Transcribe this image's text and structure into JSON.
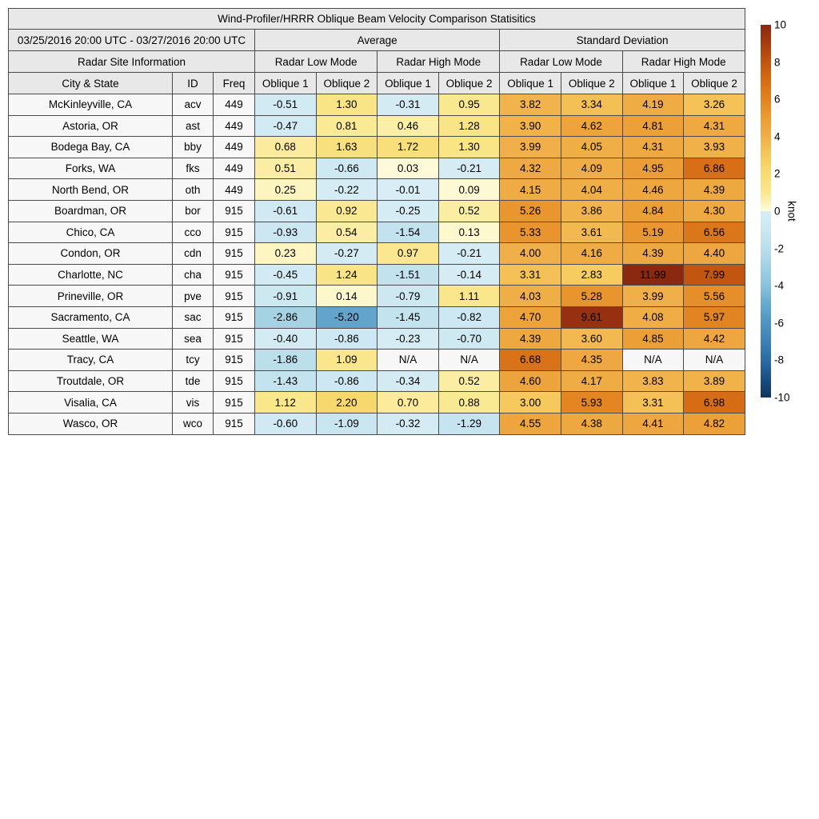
{
  "title": "Wind-Profiler/HRRR Oblique Beam Velocity Comparison Statisitics",
  "header": {
    "date_range": "03/25/2016 20:00 UTC - 03/27/2016 20:00 UTC",
    "group_average": "Average",
    "group_std": "Standard Deviation",
    "site_info": "Radar Site Information",
    "modes": [
      "Radar Low Mode",
      "Radar High Mode",
      "Radar Low Mode",
      "Radar High Mode"
    ],
    "col_city": "City & State",
    "col_id": "ID",
    "col_freq": "Freq",
    "oblique": [
      "Oblique 1",
      "Oblique 2",
      "Oblique 1",
      "Oblique 2",
      "Oblique 1",
      "Oblique 2",
      "Oblique 1",
      "Oblique 2"
    ]
  },
  "na_text": "N/A",
  "colorbar": {
    "label": "knot",
    "min": -10,
    "max": 10,
    "ticks": [
      10,
      8,
      6,
      4,
      2,
      0,
      -2,
      -4,
      -6,
      -8,
      -10
    ]
  },
  "colormap": {
    "positive_stops": [
      [
        0,
        "#FEFBDC"
      ],
      [
        0.5,
        "#FBEEA4"
      ],
      [
        1,
        "#FAE78E"
      ],
      [
        2,
        "#F8DC74"
      ],
      [
        3,
        "#F5C95C"
      ],
      [
        4,
        "#F0AF48"
      ],
      [
        5,
        "#EC9C34"
      ],
      [
        6,
        "#E28320"
      ],
      [
        7,
        "#D66C14"
      ],
      [
        8,
        "#C2550F"
      ],
      [
        9,
        "#A63C10"
      ],
      [
        10,
        "#8B2810"
      ]
    ],
    "negative_stops": [
      [
        -10,
        "#10355E"
      ],
      [
        -9,
        "#1B4E83"
      ],
      [
        -8,
        "#2B6BA6"
      ],
      [
        -7,
        "#3D81B5"
      ],
      [
        -6,
        "#4E95C3"
      ],
      [
        -5,
        "#67A8CE"
      ],
      [
        -4,
        "#8BC2DC"
      ],
      [
        -3,
        "#A2D1E3"
      ],
      [
        -2,
        "#B9DEEB"
      ],
      [
        -1,
        "#CBE7F1"
      ],
      [
        -0.001,
        "#D8EDF5"
      ]
    ],
    "header_bg": "#E8E8E8",
    "site_bg": "#F7F7F7",
    "border": "#4A4A4A"
  },
  "chart_data": {
    "type": "heatmap",
    "title": "Wind-Profiler/HRRR Oblique Beam Velocity Comparison Statisitics",
    "date_range": "03/25/2016 20:00 UTC - 03/27/2016 20:00 UTC",
    "colorbar_label": "knot",
    "value_range": [
      -10,
      10
    ],
    "legend_position": "right",
    "column_groups": [
      "Average - Radar Low Mode",
      "Average - Radar High Mode",
      "Standard Deviation - Radar Low Mode",
      "Standard Deviation - Radar High Mode"
    ],
    "value_columns": [
      "Avg Low Oblique 1",
      "Avg Low Oblique 2",
      "Avg High Oblique 1",
      "Avg High Oblique 2",
      "Std Low Oblique 1",
      "Std Low Oblique 2",
      "Std High Oblique 1",
      "Std High Oblique 2"
    ],
    "rows": [
      {
        "city": "McKinleyville, CA",
        "id": "acv",
        "freq": "449",
        "values": [
          -0.51,
          1.3,
          -0.31,
          0.95,
          3.82,
          3.34,
          4.19,
          3.26
        ]
      },
      {
        "city": "Astoria, OR",
        "id": "ast",
        "freq": "449",
        "values": [
          -0.47,
          0.81,
          0.46,
          1.28,
          3.9,
          4.62,
          4.81,
          4.31
        ]
      },
      {
        "city": "Bodega Bay, CA",
        "id": "bby",
        "freq": "449",
        "values": [
          0.68,
          1.63,
          1.72,
          1.3,
          3.99,
          4.05,
          4.31,
          3.93
        ]
      },
      {
        "city": "Forks, WA",
        "id": "fks",
        "freq": "449",
        "values": [
          0.51,
          -0.66,
          0.03,
          -0.21,
          4.32,
          4.09,
          4.95,
          6.86
        ]
      },
      {
        "city": "North Bend, OR",
        "id": "oth",
        "freq": "449",
        "values": [
          0.25,
          -0.22,
          -0.01,
          0.09,
          4.15,
          4.04,
          4.46,
          4.39
        ]
      },
      {
        "city": "Boardman, OR",
        "id": "bor",
        "freq": "915",
        "values": [
          -0.61,
          0.92,
          -0.25,
          0.52,
          5.26,
          3.86,
          4.84,
          4.3
        ]
      },
      {
        "city": "Chico, CA",
        "id": "cco",
        "freq": "915",
        "values": [
          -0.93,
          0.54,
          -1.54,
          0.13,
          5.33,
          3.61,
          5.19,
          6.56
        ]
      },
      {
        "city": "Condon, OR",
        "id": "cdn",
        "freq": "915",
        "values": [
          0.23,
          -0.27,
          0.97,
          -0.21,
          4.0,
          4.16,
          4.39,
          4.4
        ]
      },
      {
        "city": "Charlotte, NC",
        "id": "cha",
        "freq": "915",
        "values": [
          -0.45,
          1.24,
          -1.51,
          -0.14,
          3.31,
          2.83,
          11.99,
          7.99
        ]
      },
      {
        "city": "Prineville, OR",
        "id": "pve",
        "freq": "915",
        "values": [
          -0.91,
          0.14,
          -0.79,
          1.11,
          4.03,
          5.28,
          3.99,
          5.56
        ]
      },
      {
        "city": "Sacramento, CA",
        "id": "sac",
        "freq": "915",
        "values": [
          -2.86,
          -5.2,
          -1.45,
          -0.82,
          4.7,
          9.61,
          4.08,
          5.97
        ]
      },
      {
        "city": "Seattle, WA",
        "id": "sea",
        "freq": "915",
        "values": [
          -0.4,
          -0.86,
          -0.23,
          -0.7,
          4.39,
          3.6,
          4.85,
          4.42
        ]
      },
      {
        "city": "Tracy, CA",
        "id": "tcy",
        "freq": "915",
        "values": [
          -1.86,
          1.09,
          "N/A",
          "N/A",
          6.68,
          4.35,
          "N/A",
          "N/A"
        ]
      },
      {
        "city": "Troutdale, OR",
        "id": "tde",
        "freq": "915",
        "values": [
          -1.43,
          -0.86,
          -0.34,
          0.52,
          4.6,
          4.17,
          3.83,
          3.89
        ]
      },
      {
        "city": "Visalia, CA",
        "id": "vis",
        "freq": "915",
        "values": [
          1.12,
          2.2,
          0.7,
          0.88,
          3.0,
          5.93,
          3.31,
          6.98
        ]
      },
      {
        "city": "Wasco, OR",
        "id": "wco",
        "freq": "915",
        "values": [
          -0.6,
          -1.09,
          -0.32,
          -1.29,
          4.55,
          4.38,
          4.41,
          4.82
        ]
      }
    ]
  }
}
